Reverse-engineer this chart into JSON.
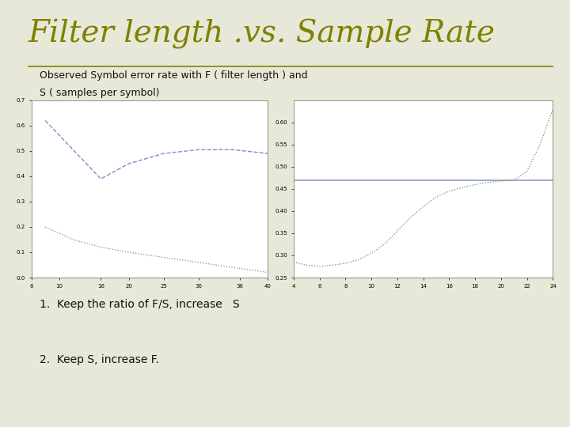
{
  "title": "Filter length .vs. Sample Rate",
  "subtitle_line1": "Observed Symbol error rate with F ( filter length ) and",
  "subtitle_line2": "S ( samples per symbol)",
  "bullet1": "1.  Keep the ratio of F/S, increase   S",
  "bullet2": "2.  Keep S, increase F.",
  "title_color": "#808000",
  "background_color": "#e8e8d8",
  "left_plot": {
    "xlim": [
      6,
      40
    ],
    "ylim": [
      0,
      0.7
    ],
    "xticks": [
      6,
      10,
      16,
      20,
      25,
      30,
      36,
      40
    ],
    "yticks": [
      0,
      0.1,
      0.2,
      0.3,
      0.4,
      0.5,
      0.6,
      0.7
    ],
    "curve1_x": [
      8,
      16,
      20,
      25,
      30,
      35,
      40
    ],
    "curve1_y": [
      0.62,
      0.39,
      0.45,
      0.49,
      0.505,
      0.505,
      0.49
    ],
    "curve1_color": "#8888cc",
    "curve1_style": "--",
    "curve2_x": [
      8,
      12,
      16,
      20,
      25,
      30,
      35,
      40
    ],
    "curve2_y": [
      0.2,
      0.15,
      0.12,
      0.1,
      0.08,
      0.06,
      0.04,
      0.02
    ],
    "curve2_color": "#60a060",
    "curve2_style": ":"
  },
  "right_plot": {
    "xlim": [
      4,
      24
    ],
    "ylim": [
      0.25,
      0.65
    ],
    "xticks": [
      4,
      6,
      8,
      10,
      12,
      14,
      16,
      18,
      20,
      22,
      24
    ],
    "yticks": [
      0.25,
      0.3,
      0.35,
      0.4,
      0.45,
      0.5,
      0.55,
      0.6
    ],
    "hline_y": 0.47,
    "hline_color": "#9898cc",
    "curve2_x": [
      4,
      5,
      6,
      7,
      8,
      9,
      10,
      11,
      12,
      13,
      14,
      15,
      16,
      17,
      18,
      19,
      20,
      21,
      22,
      23,
      24
    ],
    "curve2_y": [
      0.285,
      0.278,
      0.275,
      0.278,
      0.282,
      0.29,
      0.305,
      0.325,
      0.355,
      0.385,
      0.41,
      0.432,
      0.445,
      0.453,
      0.46,
      0.465,
      0.468,
      0.47,
      0.49,
      0.55,
      0.63
    ],
    "curve2_color": "#50a050",
    "curve2_style": ":"
  },
  "title_fontsize": 28,
  "subtitle_fontsize": 9,
  "bullet_fontsize": 10
}
